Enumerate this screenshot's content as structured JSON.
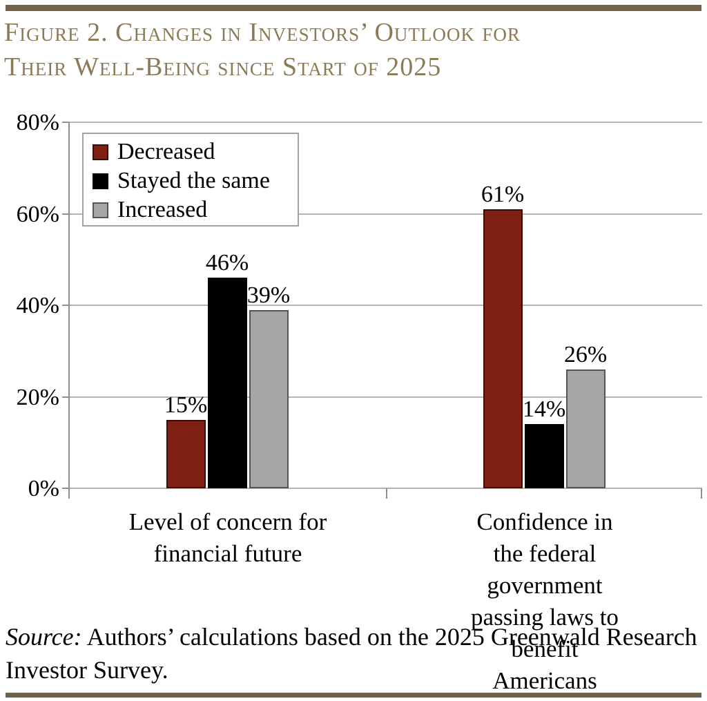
{
  "figure": {
    "title": "Figure 2. Changes in Investors’ Outlook for\nTheir Well-Being since Start of 2025"
  },
  "colors": {
    "title_tan": "#8C7A56",
    "rule_tan": "#6F6249",
    "grid_gray": "#B3B3B3",
    "axis_gray": "#8F8F8F",
    "decreased_red": "#7E2013",
    "stayed_black": "#000000",
    "increased_gray": "#A6A6A6"
  },
  "legend": {
    "items": [
      {
        "label": "Decreased"
      },
      {
        "label": "Stayed the same"
      },
      {
        "label": "Increased"
      }
    ]
  },
  "chart_data": {
    "type": "bar",
    "title": "Figure 2. Changes in Investors’ Outlook for Their Well-Being since Start of 2025",
    "categories": [
      "Level of concern for\nfinancial future",
      "Confidence in the federal\ngovernment passing laws to\nbenefit Americans"
    ],
    "series": [
      {
        "name": "Decreased",
        "color": "#7E2013",
        "border": "#380C07",
        "values": [
          15,
          61
        ]
      },
      {
        "name": "Stayed the same",
        "color": "#000000",
        "border": "#000000",
        "values": [
          46,
          14
        ]
      },
      {
        "name": "Increased",
        "color": "#A6A6A6",
        "border": "#545454",
        "values": [
          39,
          26
        ]
      }
    ],
    "value_labels": [
      [
        "15%",
        "61%"
      ],
      [
        "46%",
        "14%"
      ],
      [
        "39%",
        "26%"
      ]
    ],
    "xlabel": "",
    "ylabel": "",
    "ylim": [
      0,
      80
    ],
    "ytick_step": 20,
    "ytick_labels": [
      "0%",
      "20%",
      "40%",
      "60%",
      "80%"
    ],
    "grid": true,
    "legend_position": "upper-left"
  },
  "source": {
    "label": "Source:",
    "text": "Authors’ calculations based on the 2025 Greenwald Research Investor Survey."
  }
}
